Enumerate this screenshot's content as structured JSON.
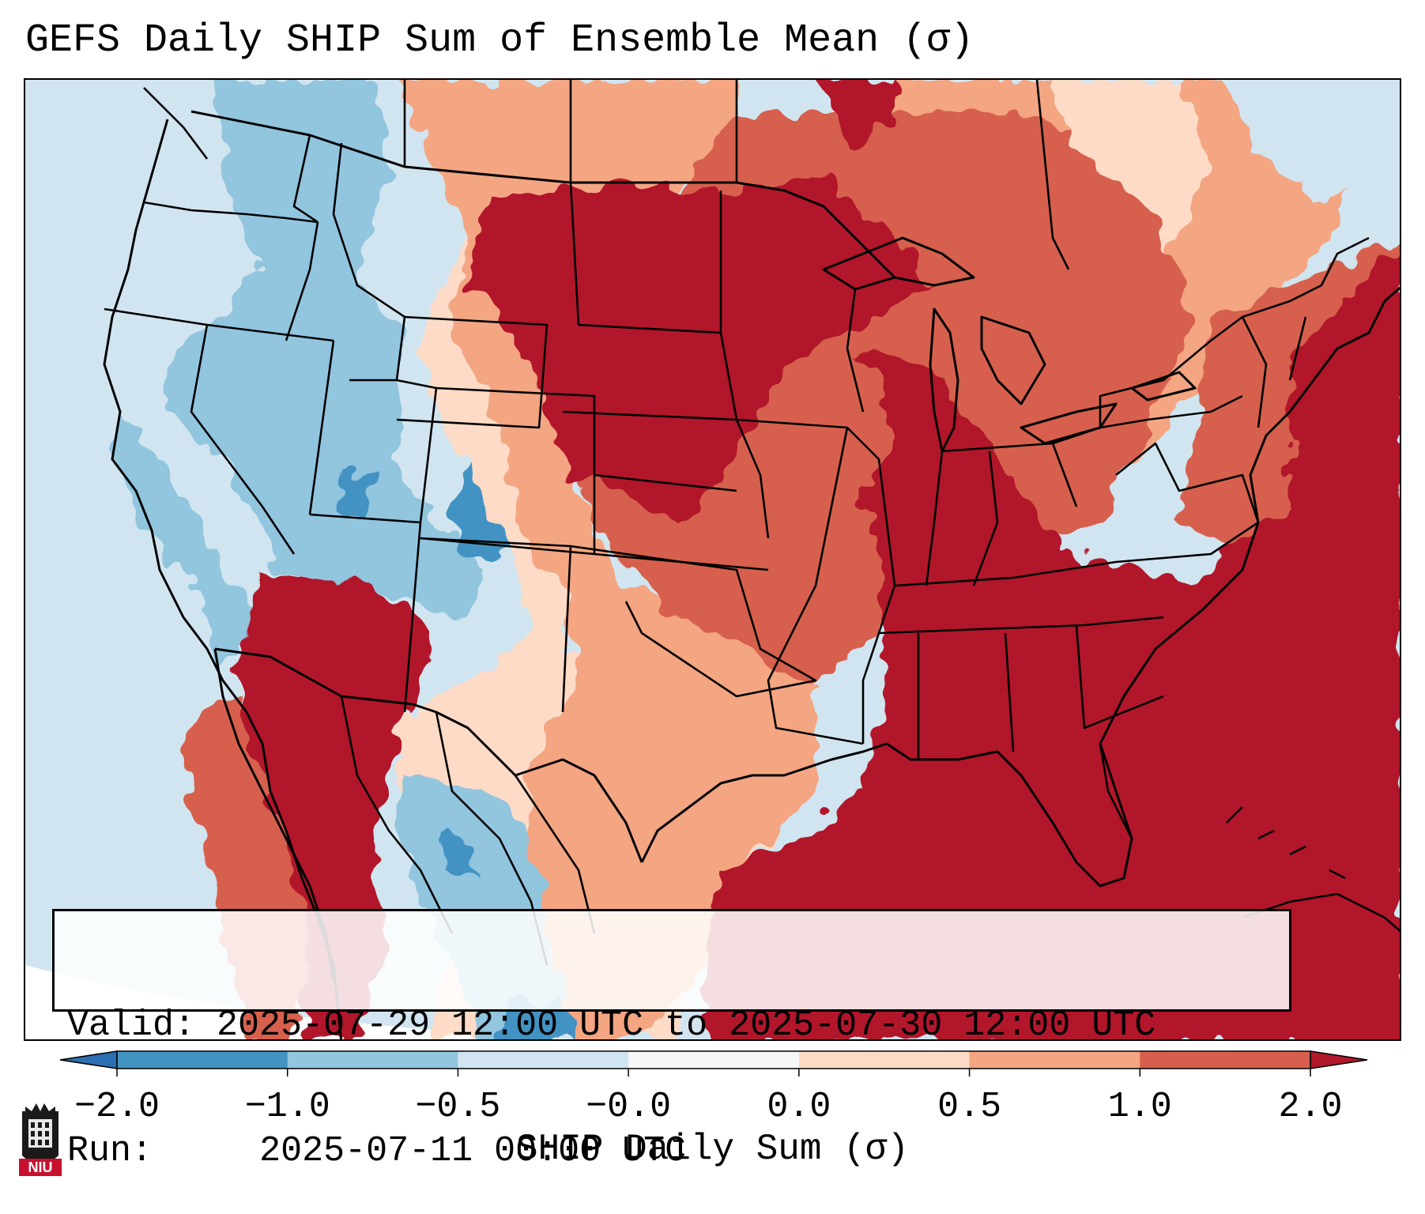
{
  "title": "GEFS Daily SHIP Sum of Ensemble Mean (σ)",
  "info_box": {
    "valid_label": "Valid:",
    "valid_value": "2025-07-29 12:00 UTC to 2025-07-30 12:00 UTC",
    "run_label": "Run:",
    "run_value": "2025-07-11 00:00 UTC"
  },
  "colorbar": {
    "label": "SHIP Daily Sum (σ)",
    "tick_labels": [
      "−2.0",
      "−1.0",
      "−0.5",
      "−0.0",
      "0.0",
      "0.5",
      "1.0",
      "2.0"
    ],
    "extend": "both",
    "colors": {
      "under": "#2c6fb3",
      "bins": [
        "#4393c3",
        "#92c5de",
        "#d1e5f0",
        "#f7f7f7",
        "#fddbc7",
        "#f4a582",
        "#d6604d"
      ],
      "over": "#b2182b"
    }
  },
  "logo": {
    "text": "NIU"
  },
  "map": {
    "region": "Contiguous United States",
    "background_ocean_color": "#d1e5f0",
    "color_scale": {
      "strong_negative": "#4393c3",
      "negative": "#92c5de",
      "weak_negative": "#d1e5f0",
      "near_zero": "#f7f7f7",
      "weak_positive": "#fddbc7",
      "positive": "#f4a582",
      "strong_positive": "#d6604d",
      "extreme_positive": "#b2182b"
    }
  }
}
